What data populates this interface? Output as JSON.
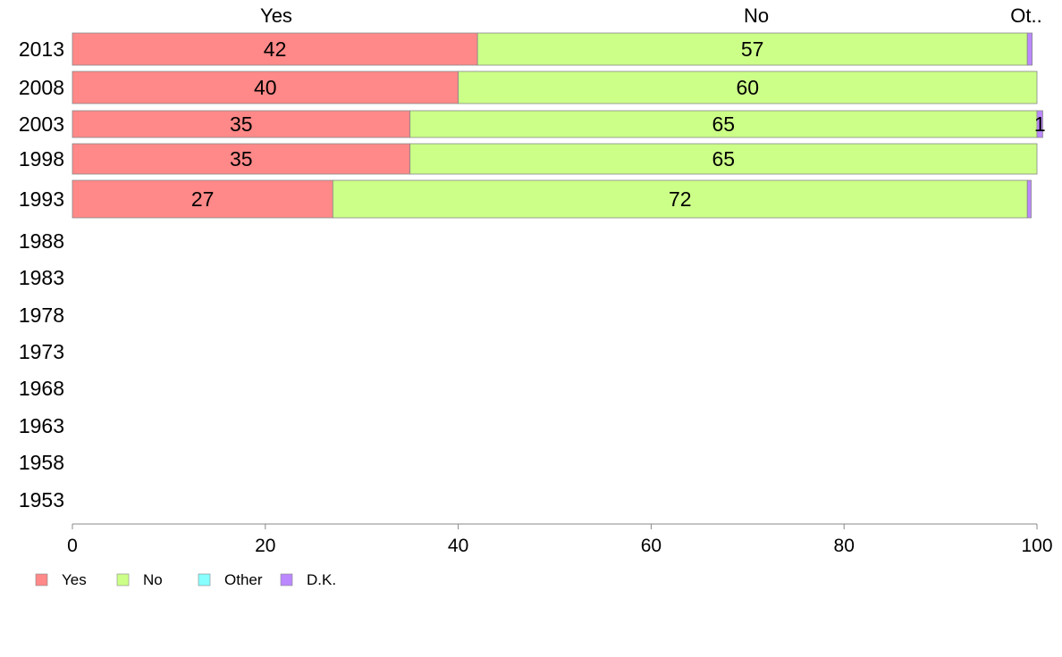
{
  "chart_data": {
    "type": "bar",
    "orientation": "horizontal",
    "stacked": true,
    "title": "",
    "xlabel": "",
    "ylabel": "",
    "xlim": [
      0,
      100
    ],
    "x_ticks": [
      "0",
      "20",
      "40",
      "60",
      "80",
      "100"
    ],
    "categories": [
      "2013",
      "2008",
      "2003",
      "1998",
      "1993",
      "1988",
      "1983",
      "1978",
      "1973",
      "1968",
      "1963",
      "1958",
      "1953"
    ],
    "top_labels": [
      "Yes",
      "No",
      "Ot.."
    ],
    "series": [
      {
        "name": "Yes",
        "color": "#ff8888",
        "values": [
          42,
          40,
          35,
          35,
          27,
          null,
          null,
          null,
          null,
          null,
          null,
          null,
          null
        ]
      },
      {
        "name": "No",
        "color": "#ccff88",
        "values": [
          57,
          60,
          65,
          65,
          72,
          null,
          null,
          null,
          null,
          null,
          null,
          null,
          null
        ]
      },
      {
        "name": "Other",
        "color": "#88ffff",
        "values": [
          0,
          0,
          0,
          0,
          0,
          null,
          null,
          null,
          null,
          null,
          null,
          null,
          null
        ]
      },
      {
        "name": "D.K.",
        "color": "#bb88ff",
        "values": [
          0.5,
          0,
          0.6,
          0,
          0.4,
          null,
          null,
          null,
          null,
          null,
          null,
          null,
          null
        ]
      }
    ],
    "data_labels": [
      [
        "42",
        "57",
        "",
        ""
      ],
      [
        "40",
        "60",
        "",
        ""
      ],
      [
        "35",
        "65",
        "",
        "1"
      ],
      [
        "35",
        "65",
        "",
        ""
      ],
      [
        "27",
        "72",
        "",
        ""
      ]
    ],
    "legend": {
      "position": "bottom-left",
      "entries": [
        "Yes",
        "No",
        "Other",
        "D.K."
      ]
    },
    "grid": false
  }
}
